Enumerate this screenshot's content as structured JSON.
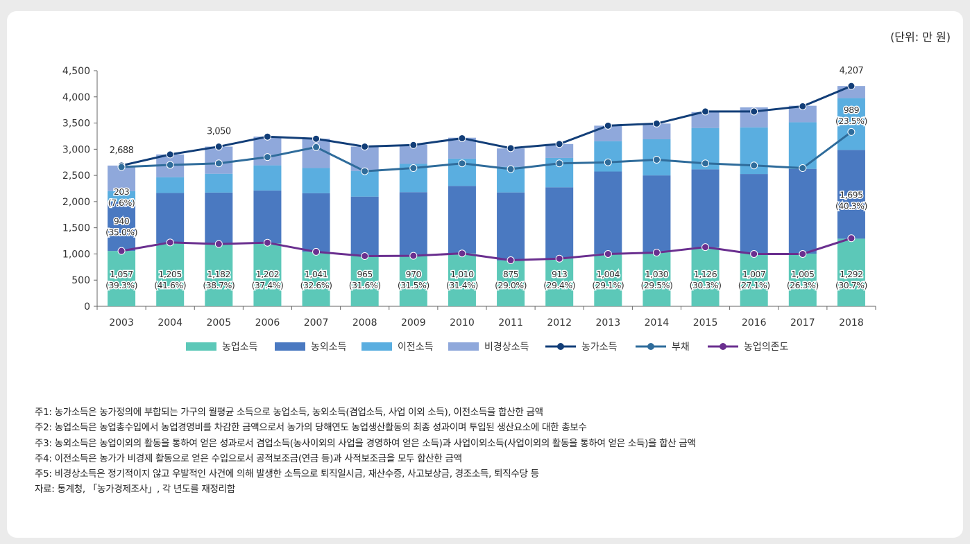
{
  "unit_label": "(단위: 만 원)",
  "notes": [
    "주1: 농가소득은 농가정의에 부합되는 가구의 월평균 소득으로 농업소득, 농외소득(겸업소득, 사업 이외 소득), 이전소득을 합산한 금액",
    "주2: 농업소득은 농업총수입에서 농업경영비를 차감한 금액으로서 농가의 당해연도 농업생산활동의 최종 성과이며 투입된 생산요소에 대한 총보수",
    "주3: 농외소득은 농업이외의 활동을 통하여 얻은 성과로서 겸업소득(농사이외의 사업을 경영하여 얻은 소득)과 사업이외소득(사업이외의 활동을 통하여 얻은 소득)을 합산 금액",
    "주4: 이전소득은 농가가 비경제 활동으로 얻은 수입으로서 공적보조금(연금 등)과 사적보조금을 모두 합산한 금액",
    "주5: 비경상소득은 정기적이지 않고 우발적인 사건에 의해 발생한 소득으로 퇴직일시금, 재산수증, 사고보상금, 경조소득, 퇴직수당 등",
    "자료: 통계청, 「농가경제조사」, 각 년도를 재정리함"
  ],
  "chart_data": {
    "type": "bar",
    "stacked": true,
    "categories": [
      "2003",
      "2004",
      "2005",
      "2006",
      "2007",
      "2008",
      "2009",
      "2010",
      "2011",
      "2012",
      "2013",
      "2014",
      "2015",
      "2016",
      "2017",
      "2018"
    ],
    "ylim": [
      0,
      4500
    ],
    "yticks": [
      0,
      500,
      1000,
      1500,
      2000,
      2500,
      3000,
      3500,
      4000,
      4500
    ],
    "ytick_labels": [
      "0",
      "500",
      "1,000",
      "1,500",
      "2,000",
      "2,500",
      "3,000",
      "3,500",
      "4,000",
      "4,500"
    ],
    "grid": false,
    "legend_position": "bottom",
    "series": [
      {
        "name": "농업소득",
        "kind": "bar",
        "color": "#5cc8b8",
        "values": [
          1057,
          1205,
          1182,
          1202,
          1041,
          965,
          970,
          1010,
          875,
          913,
          1004,
          1030,
          1126,
          1007,
          1005,
          1292
        ]
      },
      {
        "name": "농외소득",
        "kind": "bar",
        "color": "#4a79c1",
        "values": [
          940,
          960,
          990,
          1010,
          1120,
          1130,
          1210,
          1290,
          1300,
          1360,
          1570,
          1470,
          1490,
          1520,
          1620,
          1695
        ]
      },
      {
        "name": "이전소득",
        "kind": "bar",
        "color": "#5aaee0",
        "values": [
          203,
          300,
          360,
          480,
          480,
          490,
          540,
          520,
          490,
          560,
          580,
          690,
          790,
          890,
          890,
          989
        ]
      },
      {
        "name": "비경상소득",
        "kind": "bar",
        "color": "#8fa8db",
        "values": [
          488,
          435,
          518,
          548,
          559,
          465,
          370,
          400,
          350,
          267,
          296,
          300,
          304,
          383,
          315,
          231
        ]
      },
      {
        "name": "농가소득",
        "kind": "line",
        "color": "#123e78",
        "values": [
          2688,
          2900,
          3050,
          3240,
          3200,
          3050,
          3080,
          3210,
          3020,
          3100,
          3450,
          3490,
          3720,
          3720,
          3820,
          4207
        ]
      },
      {
        "name": "부채",
        "kind": "line",
        "color": "#2f6c9b",
        "values": [
          2660,
          2700,
          2730,
          2850,
          3040,
          2580,
          2640,
          2730,
          2620,
          2730,
          2750,
          2800,
          2730,
          2690,
          2640,
          3330
        ]
      },
      {
        "name": "농업의존도",
        "kind": "line",
        "color": "#6a2f8f",
        "values": [
          1057,
          1220,
          1190,
          1215,
          1040,
          960,
          965,
          1010,
          880,
          910,
          1000,
          1025,
          1130,
          1000,
          1000,
          1300
        ]
      }
    ],
    "bar_labels": {
      "ag_income": [
        "1,057",
        "1,205",
        "1,182",
        "1,202",
        "1,041",
        "965",
        "970",
        "1,010",
        "875",
        "913",
        "1,004",
        "1,030",
        "1,126",
        "1,007",
        "1,005",
        "1,292"
      ],
      "ag_share": [
        "(39.3%)",
        "(41.6%)",
        "(38.7%)",
        "(37.4%)",
        "(32.6%)",
        "(31.6%)",
        "(31.5%)",
        "(31.4%)",
        "(29.0%)",
        "(29.4%)",
        "(29.1%)",
        "(29.5%)",
        "(30.3%)",
        "(27.1%)",
        "(26.3%)",
        "(30.7%)"
      ]
    },
    "annotations": [
      {
        "index": 0,
        "value": "2,688",
        "anchor": "farm_income"
      },
      {
        "index": 2,
        "value": "3,050",
        "anchor": "farm_income"
      },
      {
        "index": 15,
        "value": "4,207",
        "anchor": "farm_income"
      },
      {
        "index": 0,
        "value": "940",
        "sub": "(35.0%)",
        "y": 1570
      },
      {
        "index": 0,
        "value": "203",
        "sub": "(7.6%)",
        "y": 2130
      },
      {
        "index": 15,
        "value": "1,695",
        "sub": "(40.3%)",
        "y": 2070
      },
      {
        "index": 15,
        "value": "989",
        "sub": "(23.5%)",
        "y": 3690
      }
    ]
  }
}
